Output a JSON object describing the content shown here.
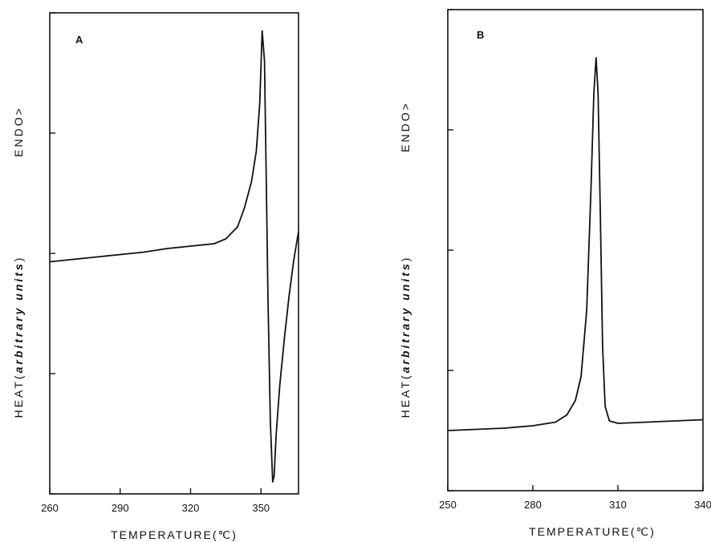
{
  "chart_data": [
    {
      "type": "line",
      "panel_label": "A",
      "xlabel_main": "TEMPERATURE",
      "xlabel_unit": "(℃)",
      "ylabel_heat": "HEAT",
      "ylabel_open": "(",
      "ylabel_units": "arbitrary units",
      "ylabel_close": ")",
      "ylabel_endo": "ENDO>",
      "xlim": [
        260,
        366
      ],
      "ylim": [
        0,
        4
      ],
      "xticks": [
        260,
        290,
        320,
        350
      ],
      "yticks": [
        0,
        1,
        2,
        3,
        4
      ],
      "ytick_labels_shown": false,
      "grid": false,
      "series": [
        {
          "x": [
            260,
            270,
            280,
            290,
            300,
            310,
            320,
            330,
            335,
            340,
            343,
            346,
            348,
            349.5,
            350.5,
            351.5,
            352.2,
            353,
            354,
            355,
            355.6,
            356.5,
            358,
            360,
            362,
            364,
            366
          ],
          "y": [
            1.93,
            1.95,
            1.97,
            1.99,
            2.01,
            2.04,
            2.06,
            2.08,
            2.12,
            2.22,
            2.38,
            2.6,
            2.85,
            3.25,
            3.85,
            3.6,
            2.7,
            1.6,
            0.6,
            0.1,
            0.15,
            0.5,
            0.9,
            1.3,
            1.65,
            1.95,
            2.18
          ]
        }
      ]
    },
    {
      "type": "line",
      "panel_label": "B",
      "xlabel_main": "TEMPERATURE",
      "xlabel_unit": "(℃)",
      "ylabel_heat": "HEAT",
      "ylabel_open": "(",
      "ylabel_units": "arbitrary units",
      "ylabel_close": ")",
      "ylabel_endo": "ENDO>",
      "xlim": [
        250,
        340
      ],
      "ylim": [
        0,
        4
      ],
      "xticks": [
        250,
        280,
        310,
        340
      ],
      "yticks": [
        0,
        1,
        2,
        3,
        4
      ],
      "ytick_labels_shown": false,
      "grid": false,
      "series": [
        {
          "x": [
            250,
            260,
            270,
            280,
            288,
            292,
            295,
            297,
            299,
            300.5,
            301.5,
            302.3,
            303,
            303.8,
            304.6,
            305.5,
            307,
            310,
            320,
            330,
            340
          ],
          "y": [
            0.5,
            0.51,
            0.52,
            0.54,
            0.57,
            0.63,
            0.75,
            0.95,
            1.5,
            2.5,
            3.3,
            3.6,
            3.3,
            2.3,
            1.2,
            0.7,
            0.58,
            0.56,
            0.57,
            0.58,
            0.59
          ]
        }
      ]
    }
  ]
}
